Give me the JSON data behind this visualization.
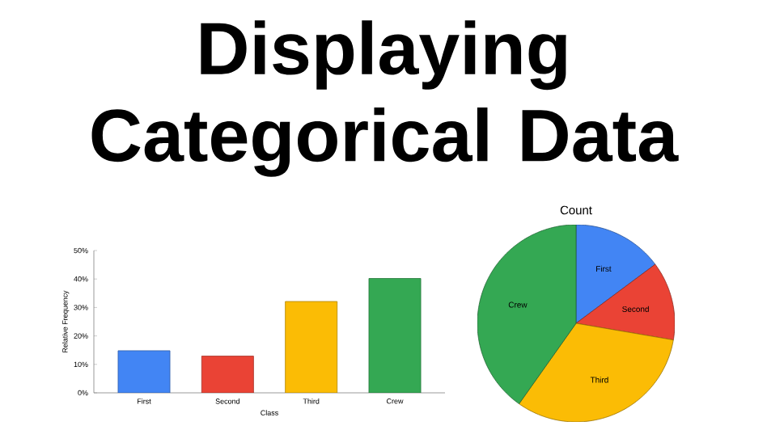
{
  "chart_data": [
    {
      "type": "bar",
      "title": "Displaying Categorical Data",
      "xlabel": "Class",
      "ylabel": "Relative Frequency",
      "categories": [
        "First",
        "Second",
        "Third",
        "Crew"
      ],
      "values": [
        14.8,
        12.9,
        32.1,
        40.2
      ],
      "colors": [
        "#4285f4",
        "#ea4335",
        "#fbbc05",
        "#34a853"
      ],
      "ylim": [
        0,
        50
      ],
      "yticks": [
        {
          "value": 0,
          "label": "0%"
        },
        {
          "value": 10,
          "label": "10%"
        },
        {
          "value": 20,
          "label": "20%"
        },
        {
          "value": 30,
          "label": "30%"
        },
        {
          "value": 40,
          "label": "40%"
        },
        {
          "value": 50,
          "label": "50%"
        }
      ]
    },
    {
      "type": "pie",
      "title": "Count",
      "categories": [
        "First",
        "Second",
        "Third",
        "Crew"
      ],
      "values": [
        14.8,
        12.9,
        32.1,
        40.2
      ],
      "colors": [
        "#4285f4",
        "#ea4335",
        "#fbbc05",
        "#34a853"
      ]
    }
  ]
}
